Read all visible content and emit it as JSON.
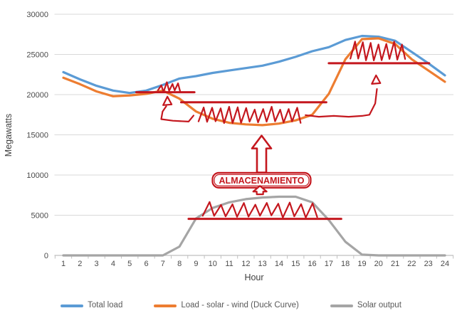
{
  "chart_data": {
    "type": "line",
    "title": "",
    "xlabel": "Hour",
    "ylabel": "Megawatts",
    "x": [
      1,
      2,
      3,
      4,
      5,
      6,
      7,
      8,
      9,
      10,
      11,
      12,
      13,
      14,
      15,
      16,
      17,
      18,
      19,
      20,
      21,
      22,
      23,
      24
    ],
    "ylim": [
      0,
      30000
    ],
    "y_ticks": [
      0,
      5000,
      10000,
      15000,
      20000,
      25000,
      30000
    ],
    "grid": true,
    "legend_position": "bottom",
    "series": [
      {
        "name": "Total load",
        "color": "#5B9BD5",
        "values": [
          22800,
          21900,
          21100,
          20500,
          20200,
          20500,
          21200,
          22000,
          22300,
          22700,
          23000,
          23300,
          23600,
          24100,
          24700,
          25400,
          25900,
          26800,
          27300,
          27200,
          26700,
          25300,
          23900,
          22400
        ]
      },
      {
        "name": "Load - solar - wind (Duck Curve)",
        "color": "#ED7D31",
        "values": [
          22100,
          21300,
          20400,
          19800,
          19900,
          20100,
          20500,
          19500,
          17900,
          17000,
          16500,
          16300,
          16200,
          16400,
          16800,
          17500,
          20100,
          24400,
          26900,
          27000,
          26300,
          24400,
          23000,
          21600
        ]
      },
      {
        "name": "Solar output",
        "color": "#A5A5A5",
        "values": [
          0,
          0,
          0,
          0,
          0,
          0,
          0,
          1100,
          4600,
          5900,
          6600,
          7000,
          7200,
          7300,
          7300,
          6600,
          4400,
          1700,
          100,
          0,
          0,
          0,
          0,
          0
        ]
      }
    ]
  },
  "annotations": {
    "color": "#C4171E",
    "storage_label": "ALMACENAMIENTO",
    "marks": [
      {
        "type": "level_line",
        "from_hour": 5.4,
        "to_hour": 8.9,
        "mw": 20300
      },
      {
        "type": "zigzag",
        "from_hour": 6.7,
        "to_hour": 8.05,
        "mw_base": 20350,
        "mw_peak": 21350,
        "teeth": 4
      },
      {
        "type": "sketch_arrow",
        "points": [
          [
            8.85,
            17400
          ],
          [
            8.55,
            16650
          ],
          [
            7.6,
            16750
          ],
          [
            6.9,
            16950
          ],
          [
            6.98,
            17900
          ],
          [
            7.2,
            18550
          ]
        ],
        "tip": [
          7.27,
          19750
        ]
      },
      {
        "type": "level_line",
        "from_hour": 8.1,
        "to_hour": 16.85,
        "mw": 19050
      },
      {
        "type": "zigzag",
        "from_hour": 9.15,
        "to_hour": 15.3,
        "mw_base": 16500,
        "mw_peak": 18350,
        "teeth": 12
      },
      {
        "type": "sketch_arrow",
        "points": [
          [
            15.6,
            17450
          ],
          [
            16.4,
            17250
          ],
          [
            17.3,
            17350
          ],
          [
            18.2,
            17250
          ],
          [
            19.0,
            17350
          ],
          [
            19.45,
            17500
          ],
          [
            19.8,
            18900
          ],
          [
            19.9,
            20700
          ]
        ],
        "tip": [
          19.85,
          22400
        ]
      },
      {
        "type": "level_line",
        "from_hour": 17.0,
        "to_hour": 23.05,
        "mw": 23900
      },
      {
        "type": "zigzag",
        "from_hour": 18.3,
        "to_hour": 21.6,
        "mw_base": 24300,
        "mw_peak": 26450,
        "teeth": 7
      },
      {
        "type": "block_arrow",
        "hour": 12.95,
        "mw_base": 10300,
        "mw_tip": 14900,
        "size": "large"
      },
      {
        "type": "label_box",
        "hour": 12.95,
        "mw": 9350,
        "text_key": "storage_label"
      },
      {
        "type": "block_arrow",
        "hour": 12.85,
        "mw_base": 7600,
        "mw_tip": 8650,
        "size": "small"
      },
      {
        "type": "level_line",
        "from_hour": 8.55,
        "to_hour": 17.75,
        "mw": 4550
      },
      {
        "type": "zigzag",
        "from_hour": 9.4,
        "to_hour": 16.3,
        "mw_base": 4750,
        "mw_peak": 6500,
        "teeth": 10
      }
    ]
  },
  "axis_style": {
    "tick_color": "#4a4a4a",
    "title_color": "#3f3f3f",
    "grid_color": "#d9d9d9",
    "baseline_color": "#bfbfbf"
  }
}
